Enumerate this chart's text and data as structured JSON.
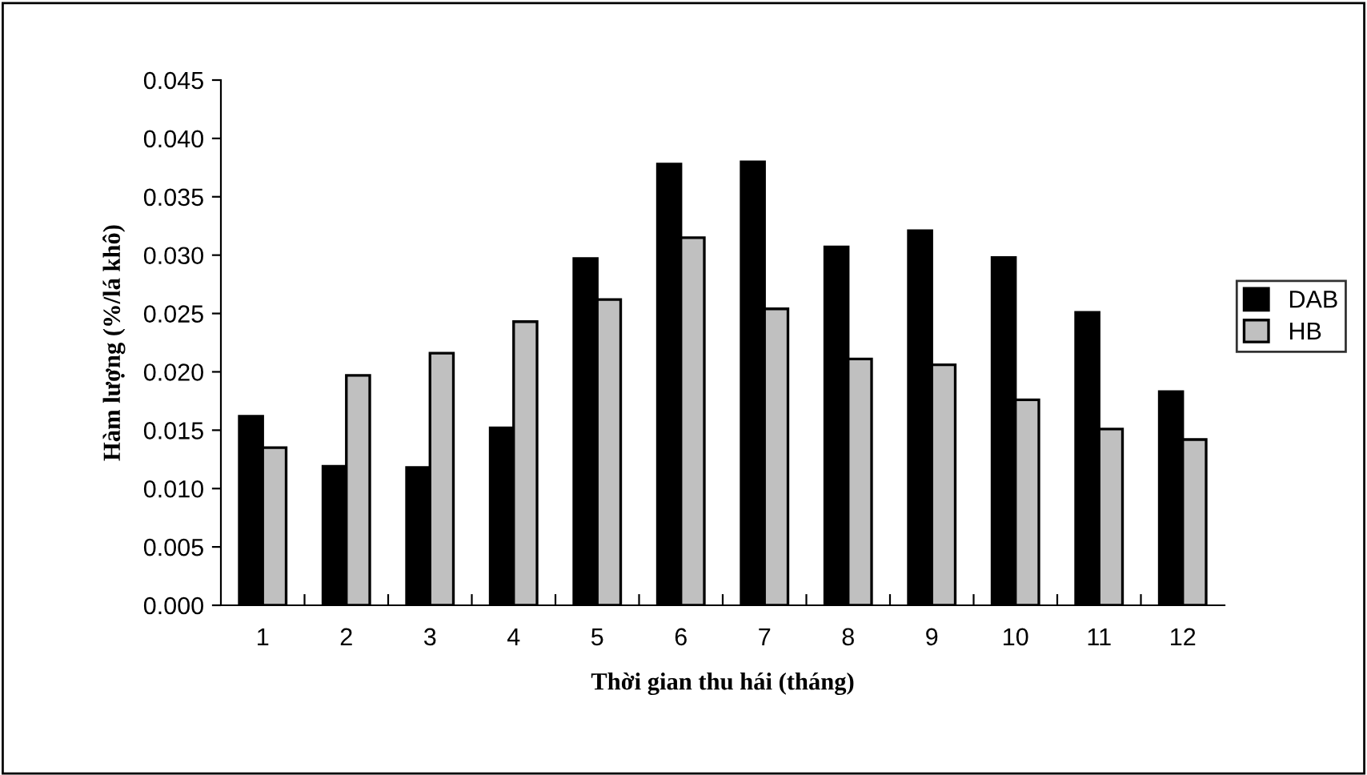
{
  "chart_data": {
    "type": "bar",
    "xlabel": "Thời gian thu hái (tháng)",
    "ylabel": "Hàm lượng (%/lá khô)",
    "categories": [
      "1",
      "2",
      "3",
      "4",
      "5",
      "6",
      "7",
      "8",
      "9",
      "10",
      "11",
      "12"
    ],
    "series": [
      {
        "name": "DAB",
        "color": "#000000",
        "values": [
          0.0162,
          0.0119,
          0.0118,
          0.0152,
          0.0297,
          0.0378,
          0.038,
          0.0307,
          0.0321,
          0.0298,
          0.0251,
          0.0183
        ]
      },
      {
        "name": "HB",
        "color": "#c0c0c0",
        "values": [
          0.0135,
          0.0197,
          0.0216,
          0.0243,
          0.0262,
          0.0315,
          0.0254,
          0.0211,
          0.0206,
          0.0176,
          0.0151,
          0.0142
        ]
      }
    ],
    "ylim": [
      0,
      0.045
    ],
    "yticks": [
      {
        "value": 0,
        "label": "0.000"
      },
      {
        "value": 0.005,
        "label": "0.005"
      },
      {
        "value": 0.01,
        "label": "0.010"
      },
      {
        "value": 0.015,
        "label": "0.015"
      },
      {
        "value": 0.02,
        "label": "0.020"
      },
      {
        "value": 0.025,
        "label": "0.025"
      },
      {
        "value": 0.03,
        "label": "0.030"
      },
      {
        "value": 0.035,
        "label": "0.035"
      },
      {
        "value": 0.04,
        "label": "0.040"
      },
      {
        "value": 0.045,
        "label": "0.045"
      }
    ],
    "grid": false,
    "legend": "right"
  }
}
